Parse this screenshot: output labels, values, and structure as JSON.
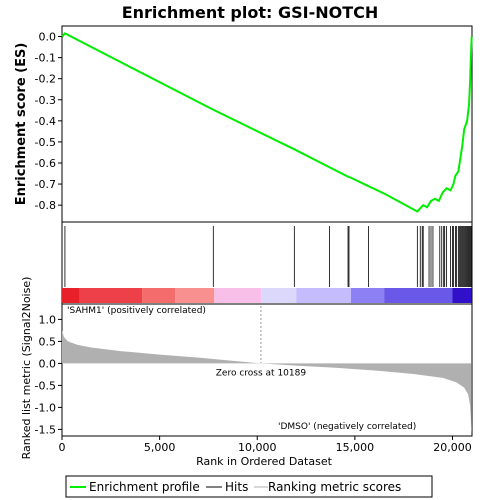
{
  "chart_data": {
    "type": "line",
    "title": "Enrichment plot: GSI-NOTCH",
    "es_panel": {
      "ylabel": "Enrichment score (ES)",
      "ylim": [
        -0.88,
        0.05
      ],
      "yticks": [
        0.0,
        -0.1,
        -0.2,
        -0.3,
        -0.4,
        -0.5,
        -0.6,
        -0.7,
        -0.8
      ],
      "ytick_labels": [
        "0.0",
        "-0.1",
        "-0.2",
        "-0.3",
        "-0.4",
        "-0.5",
        "-0.6",
        "-0.7",
        "-0.8"
      ],
      "line_color": "#00ee00",
      "series": [
        {
          "x": 0,
          "y": 0.0
        },
        {
          "x": 150,
          "y": 0.015
        },
        {
          "x": 7700,
          "y": -0.345
        },
        {
          "x": 11900,
          "y": -0.535
        },
        {
          "x": 13700,
          "y": -0.62
        },
        {
          "x": 14650,
          "y": -0.665
        },
        {
          "x": 14800,
          "y": -0.67
        },
        {
          "x": 15700,
          "y": -0.71
        },
        {
          "x": 16500,
          "y": -0.745
        },
        {
          "x": 18200,
          "y": -0.83
        },
        {
          "x": 18500,
          "y": -0.8
        },
        {
          "x": 18700,
          "y": -0.81
        },
        {
          "x": 18900,
          "y": -0.78
        },
        {
          "x": 19100,
          "y": -0.77
        },
        {
          "x": 19300,
          "y": -0.78
        },
        {
          "x": 19500,
          "y": -0.74
        },
        {
          "x": 19700,
          "y": -0.72
        },
        {
          "x": 19900,
          "y": -0.73
        },
        {
          "x": 20050,
          "y": -0.7
        },
        {
          "x": 20150,
          "y": -0.66
        },
        {
          "x": 20300,
          "y": -0.64
        },
        {
          "x": 20400,
          "y": -0.58
        },
        {
          "x": 20500,
          "y": -0.52
        },
        {
          "x": 20600,
          "y": -0.44
        },
        {
          "x": 20750,
          "y": -0.4
        },
        {
          "x": 20850,
          "y": -0.32
        },
        {
          "x": 20900,
          "y": -0.22
        },
        {
          "x": 20950,
          "y": -0.08
        },
        {
          "x": 20985,
          "y": 0.0
        }
      ]
    },
    "hits": [
      150,
      7750,
      11900,
      13700,
      14650,
      14700,
      15700,
      18200,
      18350,
      18450,
      18500,
      18800,
      18900,
      19000,
      19350,
      19450,
      19550,
      19600,
      19700,
      19900,
      20000,
      20050,
      20150,
      20200,
      20300,
      20350,
      20400,
      20450,
      20500,
      20550,
      20600,
      20650,
      20700,
      20750,
      20800,
      20850,
      20900,
      20950
    ],
    "metric_panel": {
      "ylabel": "Ranked list metric (Signal2Noise)",
      "ylim": [
        -1.65,
        1.35
      ],
      "yticks": [
        1.0,
        0.5,
        0.0,
        -0.5,
        -1.0,
        -1.5
      ],
      "ytick_labels": [
        "1.0",
        "0.5",
        "0.0",
        "-0.5",
        "-1.0",
        "-1.5"
      ],
      "xlabel": "Rank in Ordered Dataset",
      "xlim": [
        0,
        21000
      ],
      "xticks": [
        0,
        5000,
        10000,
        15000,
        20000
      ],
      "xtick_labels": [
        "0",
        "5,000",
        "10,000",
        "15,000",
        "20,000"
      ],
      "fill_color": "#b0b0b0",
      "zero_cross": 10189,
      "zero_cross_label": "Zero cross at 10189",
      "series": [
        {
          "x": 0,
          "y": 0.75
        },
        {
          "x": 100,
          "y": 0.6
        },
        {
          "x": 300,
          "y": 0.5
        },
        {
          "x": 800,
          "y": 0.42
        },
        {
          "x": 1500,
          "y": 0.36
        },
        {
          "x": 3000,
          "y": 0.28
        },
        {
          "x": 5000,
          "y": 0.2
        },
        {
          "x": 7000,
          "y": 0.13
        },
        {
          "x": 8500,
          "y": 0.07
        },
        {
          "x": 10189,
          "y": 0.0
        },
        {
          "x": 12000,
          "y": -0.05
        },
        {
          "x": 14000,
          "y": -0.1
        },
        {
          "x": 16000,
          "y": -0.16
        },
        {
          "x": 18000,
          "y": -0.24
        },
        {
          "x": 19500,
          "y": -0.33
        },
        {
          "x": 20200,
          "y": -0.43
        },
        {
          "x": 20600,
          "y": -0.55
        },
        {
          "x": 20800,
          "y": -0.7
        },
        {
          "x": 20900,
          "y": -0.95
        },
        {
          "x": 20985,
          "y": -1.58
        }
      ]
    },
    "color_bar": {
      "segments": [
        {
          "start": 0,
          "end": 900,
          "color": "#e8202a"
        },
        {
          "start": 900,
          "end": 4100,
          "color": "#ee4048"
        },
        {
          "start": 4100,
          "end": 5800,
          "color": "#f46c6c"
        },
        {
          "start": 5800,
          "end": 7800,
          "color": "#f89090"
        },
        {
          "start": 7800,
          "end": 10200,
          "color": "#f8c0e8"
        },
        {
          "start": 10200,
          "end": 12000,
          "color": "#dcd8fc"
        },
        {
          "start": 12000,
          "end": 14800,
          "color": "#c4bcfc"
        },
        {
          "start": 14800,
          "end": 16500,
          "color": "#8c80f4"
        },
        {
          "start": 16500,
          "end": 20000,
          "color": "#6a58e8"
        },
        {
          "start": 20000,
          "end": 20985,
          "color": "#3010c8"
        }
      ],
      "positive_label": "'SAHM1' (positively correlated)",
      "positive_color": "#dd2020",
      "negative_label": "'DMSO' (negatively correlated)",
      "negative_color": "#3333cc"
    },
    "legend": {
      "placement": "bottom",
      "items": [
        {
          "label": "Enrichment profile",
          "color": "#00ee00",
          "style": "line"
        },
        {
          "label": "Hits",
          "color": "#000000",
          "style": "line"
        },
        {
          "label": "Ranking metric scores",
          "color": "#b0b0b0",
          "style": "line"
        }
      ]
    }
  }
}
